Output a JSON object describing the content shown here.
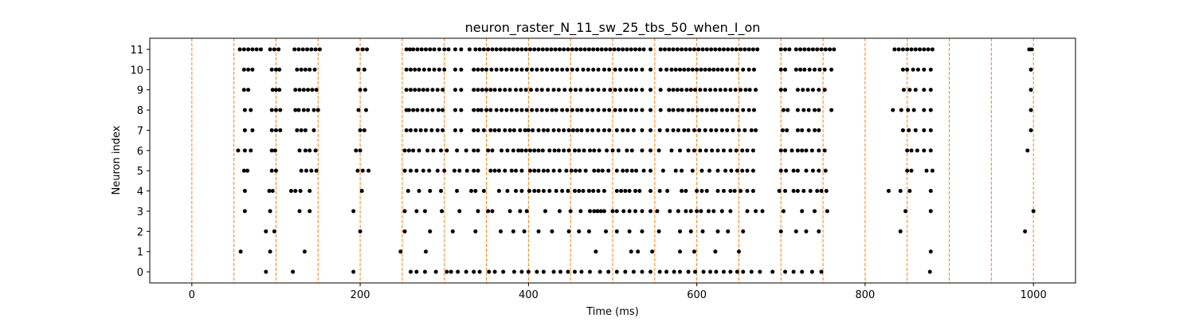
{
  "chart_data": {
    "type": "scatter",
    "title": "neuron_raster_N_11_sw_25_tbs_50_when_I_on",
    "xlabel": "Time (ms)",
    "ylabel": "Neuron index",
    "xlim": [
      -50,
      1050
    ],
    "ylim": [
      -0.55,
      11.55
    ],
    "xticks": [
      0,
      200,
      400,
      600,
      800,
      1000
    ],
    "yticks": [
      0,
      1,
      2,
      3,
      4,
      5,
      6,
      7,
      8,
      9,
      10,
      11
    ],
    "grid": false,
    "vlines": [
      0,
      50,
      100,
      150,
      200,
      250,
      300,
      350,
      400,
      450,
      500,
      550,
      600,
      650,
      700,
      750,
      800,
      850,
      900,
      950,
      1000
    ],
    "colors": {
      "points": "#000000",
      "vlines": "#ff7f0e",
      "axes": "#000000"
    },
    "series": [
      {
        "neuron": 0,
        "x": [
          88,
          120,
          192,
          260,
          267,
          277,
          290,
          303,
          308,
          316,
          326,
          335,
          342,
          353,
          360,
          370,
          383,
          392,
          400,
          410,
          418,
          430,
          438,
          447,
          455,
          463,
          473,
          485,
          495,
          505,
          515,
          525,
          535,
          545,
          556,
          564,
          573,
          580,
          590,
          598,
          608,
          616,
          623,
          632,
          640,
          648,
          655,
          665,
          675,
          690,
          705,
          715,
          725,
          737,
          748,
          877
        ]
      },
      {
        "neuron": 1,
        "x": [
          58,
          93,
          134,
          248,
          278,
          480,
          522,
          530,
          547,
          580,
          597,
          622,
          650,
          878
        ]
      },
      {
        "neuron": 2,
        "x": [
          88,
          98,
          200,
          253,
          283,
          310,
          337,
          367,
          382,
          395,
          412,
          428,
          448,
          460,
          472,
          492,
          505,
          520,
          535,
          555,
          580,
          593,
          607,
          625,
          637,
          655,
          700,
          718,
          730,
          745,
          842,
          990
        ]
      },
      {
        "neuron": 3,
        "x": [
          63,
          93,
          128,
          140,
          192,
          253,
          267,
          277,
          297,
          318,
          340,
          352,
          357,
          378,
          390,
          398,
          420,
          437,
          450,
          462,
          473,
          478,
          482,
          486,
          490,
          500,
          505,
          513,
          520,
          527,
          535,
          545,
          553,
          568,
          578,
          587,
          593,
          600,
          605,
          614,
          620,
          630,
          640,
          660,
          670,
          678,
          703,
          725,
          740,
          755,
          848,
          878,
          1000
        ]
      },
      {
        "neuron": 4,
        "x": [
          63,
          92,
          96,
          118,
          123,
          129,
          140,
          202,
          257,
          270,
          283,
          296,
          315,
          332,
          337,
          347,
          365,
          375,
          385,
          392,
          401,
          407,
          412,
          418,
          425,
          433,
          440,
          447,
          455,
          460,
          465,
          472,
          477,
          483,
          490,
          505,
          510,
          515,
          520,
          527,
          532,
          545,
          556,
          565,
          582,
          587,
          600,
          606,
          612,
          625,
          632,
          640,
          645,
          652,
          660,
          667,
          698,
          705,
          715,
          720,
          727,
          735,
          743,
          748,
          754,
          828,
          842,
          853,
          878
        ]
      },
      {
        "neuron": 5,
        "x": [
          62,
          66,
          95,
          100,
          130,
          136,
          142,
          148,
          197,
          203,
          210,
          253,
          260,
          267,
          275,
          282,
          292,
          300,
          312,
          318,
          327,
          335,
          340,
          355,
          360,
          365,
          372,
          380,
          385,
          392,
          402,
          407,
          412,
          418,
          423,
          430,
          437,
          445,
          451,
          456,
          461,
          468,
          478,
          483,
          488,
          495,
          505,
          512,
          517,
          523,
          528,
          537,
          545,
          560,
          575,
          582,
          595,
          606,
          615,
          625,
          634,
          641,
          648,
          654,
          660,
          667,
          700,
          706,
          715,
          720,
          730,
          738,
          745,
          753,
          850,
          855,
          873,
          880
        ]
      },
      {
        "neuron": 6,
        "x": [
          55,
          63,
          70,
          95,
          99,
          128,
          135,
          140,
          147,
          195,
          200,
          253,
          258,
          263,
          270,
          280,
          287,
          296,
          303,
          315,
          326,
          335,
          340,
          352,
          357,
          368,
          375,
          382,
          388,
          392,
          397,
          402,
          407,
          412,
          417,
          425,
          431,
          436,
          442,
          448,
          455,
          460,
          466,
          473,
          478,
          484,
          493,
          500,
          507,
          517,
          523,
          535,
          545,
          555,
          570,
          580,
          590,
          597,
          604,
          611,
          618,
          625,
          632,
          640,
          647,
          654,
          660,
          667,
          700,
          705,
          713,
          720,
          725,
          730,
          737,
          745,
          752,
          850,
          855,
          862,
          870,
          878,
          993
        ]
      },
      {
        "neuron": 7,
        "x": [
          63,
          72,
          95,
          100,
          105,
          125,
          130,
          135,
          145,
          200,
          205,
          255,
          260,
          266,
          272,
          278,
          285,
          292,
          298,
          313,
          320,
          335,
          340,
          347,
          355,
          360,
          365,
          372,
          378,
          383,
          390,
          396,
          400,
          405,
          412,
          418,
          423,
          430,
          436,
          442,
          448,
          453,
          458,
          463,
          470,
          476,
          483,
          490,
          496,
          505,
          512,
          518,
          525,
          535,
          545,
          556,
          565,
          572,
          578,
          585,
          590,
          597,
          603,
          610,
          617,
          623,
          630,
          636,
          643,
          650,
          657,
          665,
          670,
          702,
          707,
          720,
          725,
          733,
          740,
          745,
          845,
          852,
          860,
          870,
          878,
          997
        ]
      },
      {
        "neuron": 8,
        "x": [
          63,
          70,
          95,
          100,
          105,
          123,
          127,
          133,
          138,
          145,
          150,
          198,
          207,
          255,
          258,
          263,
          268,
          274,
          280,
          286,
          293,
          298,
          313,
          320,
          335,
          340,
          344,
          350,
          355,
          362,
          368,
          374,
          380,
          386,
          392,
          398,
          404,
          410,
          416,
          422,
          428,
          433,
          440,
          446,
          452,
          458,
          463,
          470,
          476,
          483,
          490,
          496,
          503,
          509,
          515,
          522,
          528,
          535,
          545,
          557,
          567,
          572,
          578,
          583,
          590,
          595,
          601,
          606,
          612,
          618,
          623,
          630,
          636,
          642,
          648,
          655,
          662,
          668,
          703,
          708,
          720,
          727,
          733,
          740,
          745,
          760,
          833,
          843,
          851,
          858,
          870,
          878,
          997
        ]
      },
      {
        "neuron": 9,
        "x": [
          62,
          67,
          96,
          100,
          104,
          123,
          128,
          133,
          138,
          143,
          148,
          200,
          206,
          255,
          260,
          265,
          270,
          275,
          280,
          286,
          292,
          298,
          313,
          320,
          335,
          340,
          345,
          350,
          355,
          360,
          366,
          372,
          378,
          385,
          391,
          397,
          403,
          410,
          416,
          423,
          430,
          436,
          443,
          450,
          456,
          462,
          470,
          476,
          483,
          490,
          497,
          503,
          509,
          516,
          522,
          528,
          535,
          545,
          557,
          567,
          572,
          577,
          582,
          588,
          593,
          598,
          604,
          610,
          616,
          622,
          628,
          634,
          640,
          646,
          652,
          658,
          663,
          670,
          700,
          705,
          720,
          726,
          732,
          738,
          745,
          752,
          846,
          853,
          860,
          870,
          878,
          997
        ]
      },
      {
        "neuron": 10,
        "x": [
          62,
          67,
          72,
          95,
          100,
          104,
          125,
          130,
          135,
          140,
          146,
          198,
          205,
          255,
          260,
          265,
          270,
          276,
          282,
          288,
          294,
          300,
          313,
          320,
          335,
          340,
          345,
          350,
          356,
          362,
          368,
          374,
          380,
          386,
          392,
          398,
          404,
          410,
          416,
          422,
          428,
          434,
          440,
          446,
          452,
          458,
          465,
          471,
          477,
          483,
          490,
          496,
          503,
          509,
          516,
          522,
          528,
          535,
          545,
          557,
          564,
          570,
          575,
          580,
          585,
          590,
          595,
          600,
          605,
          610,
          615,
          620,
          625,
          630,
          636,
          642,
          648,
          655,
          662,
          668,
          700,
          705,
          718,
          723,
          728,
          734,
          740,
          746,
          752,
          760,
          845,
          850,
          857,
          863,
          870,
          878,
          997
        ]
      },
      {
        "neuron": 11,
        "x": [
          57,
          62,
          67,
          72,
          77,
          82,
          93,
          98,
          103,
          122,
          127,
          132,
          137,
          142,
          147,
          152,
          197,
          203,
          208,
          255,
          259,
          263,
          268,
          273,
          278,
          283,
          288,
          294,
          300,
          305,
          313,
          320,
          330,
          337,
          342,
          347,
          352,
          357,
          362,
          367,
          372,
          377,
          382,
          387,
          392,
          397,
          402,
          407,
          412,
          417,
          422,
          427,
          432,
          437,
          442,
          447,
          452,
          457,
          462,
          467,
          472,
          477,
          482,
          487,
          492,
          497,
          502,
          507,
          512,
          517,
          522,
          527,
          532,
          537,
          545,
          557,
          562,
          567,
          572,
          577,
          582,
          587,
          592,
          597,
          602,
          607,
          612,
          617,
          622,
          627,
          632,
          637,
          642,
          647,
          652,
          657,
          662,
          667,
          672,
          700,
          705,
          710,
          718,
          723,
          728,
          733,
          738,
          743,
          748,
          753,
          758,
          763,
          835,
          840,
          845,
          850,
          855,
          860,
          865,
          870,
          875,
          880,
          995,
          998
        ]
      }
    ]
  }
}
